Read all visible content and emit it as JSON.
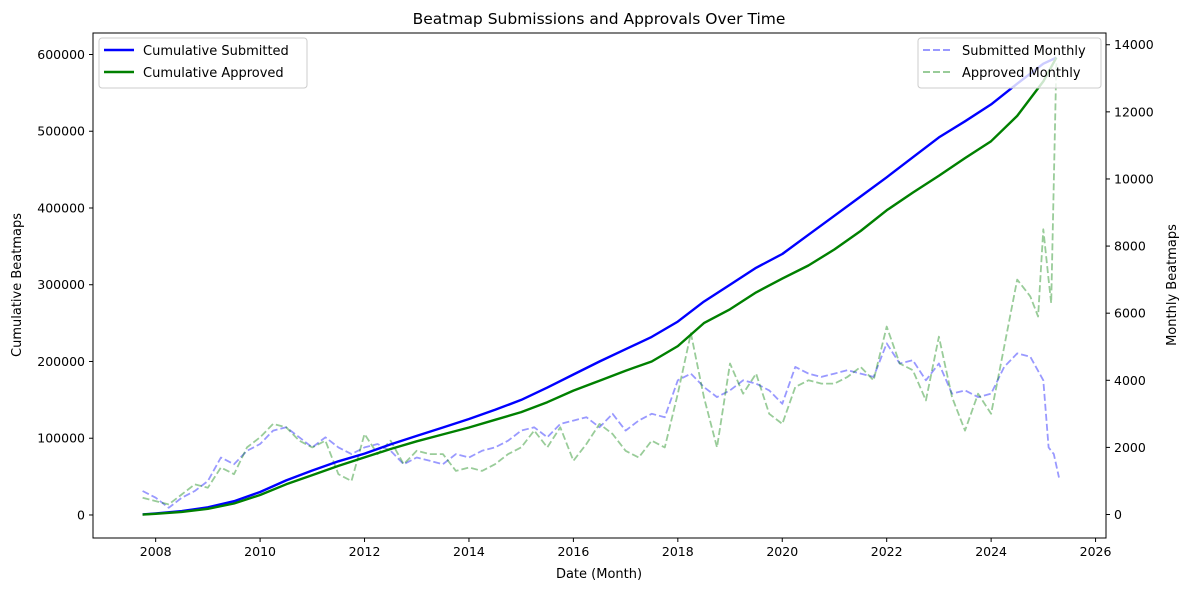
{
  "chart_data": {
    "type": "line",
    "title": "Beatmap Submissions and Approvals Over Time",
    "xlabel": "Date (Month)",
    "ylabel_left": "Cumulative Beatmaps",
    "ylabel_right": "Monthly Beatmaps",
    "x_range": [
      2006.8,
      2026.2
    ],
    "x_ticks": [
      2008,
      2010,
      2012,
      2014,
      2016,
      2018,
      2020,
      2022,
      2024,
      2026
    ],
    "y_left_range": [
      -30000,
      628000
    ],
    "y_left_ticks": [
      0,
      100000,
      200000,
      300000,
      400000,
      500000,
      600000
    ],
    "y_right_range": [
      -700,
      14350
    ],
    "y_right_ticks": [
      0,
      2000,
      4000,
      6000,
      8000,
      10000,
      12000,
      14000
    ],
    "grid": false,
    "legend_left": "upper-left",
    "legend_right": "upper-right",
    "series_cumulative": [
      {
        "name": "Cumulative Submitted",
        "axis": "left",
        "color": "#0000ff",
        "style": "solid",
        "points": [
          [
            2007.75,
            700
          ],
          [
            2008.0,
            2000
          ],
          [
            2008.5,
            5000
          ],
          [
            2009.0,
            10000
          ],
          [
            2009.5,
            18000
          ],
          [
            2010.0,
            30000
          ],
          [
            2010.5,
            45000
          ],
          [
            2011.0,
            58000
          ],
          [
            2011.5,
            70000
          ],
          [
            2012.0,
            80000
          ],
          [
            2012.5,
            92000
          ],
          [
            2013.0,
            103000
          ],
          [
            2013.5,
            114000
          ],
          [
            2014.0,
            125000
          ],
          [
            2014.5,
            137000
          ],
          [
            2015.0,
            150000
          ],
          [
            2015.5,
            166000
          ],
          [
            2016.0,
            183000
          ],
          [
            2016.5,
            200000
          ],
          [
            2017.0,
            216000
          ],
          [
            2017.5,
            232000
          ],
          [
            2018.0,
            252000
          ],
          [
            2018.5,
            278000
          ],
          [
            2019.0,
            300000
          ],
          [
            2019.5,
            322000
          ],
          [
            2020.0,
            340000
          ],
          [
            2020.5,
            365000
          ],
          [
            2021.0,
            390000
          ],
          [
            2021.5,
            415000
          ],
          [
            2022.0,
            440000
          ],
          [
            2022.5,
            466000
          ],
          [
            2023.0,
            492000
          ],
          [
            2023.5,
            513000
          ],
          [
            2024.0,
            535000
          ],
          [
            2024.5,
            562000
          ],
          [
            2025.0,
            588000
          ],
          [
            2025.25,
            596000
          ]
        ]
      },
      {
        "name": "Cumulative Approved",
        "axis": "left",
        "color": "#008000",
        "style": "solid",
        "points": [
          [
            2007.75,
            500
          ],
          [
            2008.0,
            1500
          ],
          [
            2008.5,
            4000
          ],
          [
            2009.0,
            8000
          ],
          [
            2009.5,
            15000
          ],
          [
            2010.0,
            26000
          ],
          [
            2010.5,
            40000
          ],
          [
            2011.0,
            52000
          ],
          [
            2011.5,
            64000
          ],
          [
            2012.0,
            75000
          ],
          [
            2012.5,
            86000
          ],
          [
            2013.0,
            96000
          ],
          [
            2013.5,
            105000
          ],
          [
            2014.0,
            114000
          ],
          [
            2014.5,
            124000
          ],
          [
            2015.0,
            134000
          ],
          [
            2015.5,
            147000
          ],
          [
            2016.0,
            162000
          ],
          [
            2016.5,
            175000
          ],
          [
            2017.0,
            188000
          ],
          [
            2017.5,
            200000
          ],
          [
            2018.0,
            220000
          ],
          [
            2018.5,
            250000
          ],
          [
            2019.0,
            268000
          ],
          [
            2019.5,
            290000
          ],
          [
            2020.0,
            308000
          ],
          [
            2020.5,
            325000
          ],
          [
            2021.0,
            346000
          ],
          [
            2021.5,
            370000
          ],
          [
            2022.0,
            397000
          ],
          [
            2022.5,
            420000
          ],
          [
            2023.0,
            442000
          ],
          [
            2023.5,
            465000
          ],
          [
            2024.0,
            487000
          ],
          [
            2024.5,
            520000
          ],
          [
            2025.0,
            565000
          ],
          [
            2025.25,
            596000
          ]
        ]
      }
    ],
    "series_monthly": [
      {
        "name": "Submitted Monthly",
        "axis": "right",
        "color": "#0000ff",
        "style": "dashed",
        "points": [
          [
            2007.75,
            700
          ],
          [
            2008.0,
            500
          ],
          [
            2008.25,
            200
          ],
          [
            2008.5,
            500
          ],
          [
            2008.75,
            700
          ],
          [
            2009.0,
            1000
          ],
          [
            2009.25,
            1700
          ],
          [
            2009.5,
            1500
          ],
          [
            2009.75,
            1900
          ],
          [
            2010.0,
            2100
          ],
          [
            2010.25,
            2500
          ],
          [
            2010.5,
            2600
          ],
          [
            2010.75,
            2300
          ],
          [
            2011.0,
            2000
          ],
          [
            2011.25,
            2300
          ],
          [
            2011.5,
            2000
          ],
          [
            2011.75,
            1800
          ],
          [
            2012.0,
            2000
          ],
          [
            2012.25,
            2100
          ],
          [
            2012.5,
            1900
          ],
          [
            2012.75,
            1500
          ],
          [
            2013.0,
            1700
          ],
          [
            2013.25,
            1600
          ],
          [
            2013.5,
            1500
          ],
          [
            2013.75,
            1800
          ],
          [
            2014.0,
            1700
          ],
          [
            2014.25,
            1900
          ],
          [
            2014.5,
            2000
          ],
          [
            2014.75,
            2200
          ],
          [
            2015.0,
            2500
          ],
          [
            2015.25,
            2600
          ],
          [
            2015.5,
            2300
          ],
          [
            2015.75,
            2700
          ],
          [
            2016.0,
            2800
          ],
          [
            2016.25,
            2900
          ],
          [
            2016.5,
            2600
          ],
          [
            2016.75,
            3000
          ],
          [
            2017.0,
            2500
          ],
          [
            2017.25,
            2800
          ],
          [
            2017.5,
            3000
          ],
          [
            2017.75,
            2900
          ],
          [
            2018.0,
            4000
          ],
          [
            2018.25,
            4200
          ],
          [
            2018.5,
            3800
          ],
          [
            2018.75,
            3500
          ],
          [
            2019.0,
            3700
          ],
          [
            2019.25,
            4000
          ],
          [
            2019.5,
            3900
          ],
          [
            2019.75,
            3700
          ],
          [
            2020.0,
            3300
          ],
          [
            2020.25,
            4400
          ],
          [
            2020.5,
            4200
          ],
          [
            2020.75,
            4100
          ],
          [
            2021.0,
            4200
          ],
          [
            2021.25,
            4300
          ],
          [
            2021.5,
            4200
          ],
          [
            2021.75,
            4100
          ],
          [
            2022.0,
            5100
          ],
          [
            2022.25,
            4500
          ],
          [
            2022.5,
            4600
          ],
          [
            2022.75,
            4000
          ],
          [
            2023.0,
            4500
          ],
          [
            2023.25,
            3600
          ],
          [
            2023.5,
            3700
          ],
          [
            2023.75,
            3500
          ],
          [
            2024.0,
            3600
          ],
          [
            2024.25,
            4400
          ],
          [
            2024.5,
            4800
          ],
          [
            2024.75,
            4700
          ],
          [
            2025.0,
            4000
          ],
          [
            2025.1,
            2000
          ],
          [
            2025.2,
            1800
          ],
          [
            2025.3,
            1100
          ]
        ]
      },
      {
        "name": "Approved Monthly",
        "axis": "right",
        "color": "#008000",
        "style": "dashed",
        "points": [
          [
            2007.75,
            500
          ],
          [
            2008.0,
            400
          ],
          [
            2008.25,
            300
          ],
          [
            2008.5,
            600
          ],
          [
            2008.75,
            900
          ],
          [
            2009.0,
            800
          ],
          [
            2009.25,
            1400
          ],
          [
            2009.5,
            1200
          ],
          [
            2009.75,
            2000
          ],
          [
            2010.0,
            2300
          ],
          [
            2010.25,
            2700
          ],
          [
            2010.5,
            2600
          ],
          [
            2010.75,
            2200
          ],
          [
            2011.0,
            2000
          ],
          [
            2011.25,
            2200
          ],
          [
            2011.5,
            1200
          ],
          [
            2011.75,
            1000
          ],
          [
            2012.0,
            2400
          ],
          [
            2012.25,
            1800
          ],
          [
            2012.5,
            2200
          ],
          [
            2012.75,
            1500
          ],
          [
            2013.0,
            1900
          ],
          [
            2013.25,
            1800
          ],
          [
            2013.5,
            1800
          ],
          [
            2013.75,
            1300
          ],
          [
            2014.0,
            1400
          ],
          [
            2014.25,
            1300
          ],
          [
            2014.5,
            1500
          ],
          [
            2014.75,
            1800
          ],
          [
            2015.0,
            2000
          ],
          [
            2015.25,
            2500
          ],
          [
            2015.5,
            2000
          ],
          [
            2015.75,
            2600
          ],
          [
            2016.0,
            1600
          ],
          [
            2016.25,
            2100
          ],
          [
            2016.5,
            2700
          ],
          [
            2016.75,
            2400
          ],
          [
            2017.0,
            1900
          ],
          [
            2017.25,
            1700
          ],
          [
            2017.5,
            2200
          ],
          [
            2017.75,
            2000
          ],
          [
            2018.0,
            3600
          ],
          [
            2018.25,
            5400
          ],
          [
            2018.5,
            3500
          ],
          [
            2018.75,
            2000
          ],
          [
            2019.0,
            4500
          ],
          [
            2019.25,
            3600
          ],
          [
            2019.5,
            4200
          ],
          [
            2019.75,
            3000
          ],
          [
            2020.0,
            2700
          ],
          [
            2020.25,
            3800
          ],
          [
            2020.5,
            4000
          ],
          [
            2020.75,
            3900
          ],
          [
            2021.0,
            3900
          ],
          [
            2021.25,
            4100
          ],
          [
            2021.5,
            4400
          ],
          [
            2021.75,
            4000
          ],
          [
            2022.0,
            5600
          ],
          [
            2022.25,
            4500
          ],
          [
            2022.5,
            4300
          ],
          [
            2022.75,
            3400
          ],
          [
            2023.0,
            5300
          ],
          [
            2023.25,
            3500
          ],
          [
            2023.5,
            2500
          ],
          [
            2023.75,
            3600
          ],
          [
            2024.0,
            3000
          ],
          [
            2024.25,
            5000
          ],
          [
            2024.5,
            7000
          ],
          [
            2024.75,
            6500
          ],
          [
            2024.9,
            5900
          ],
          [
            2025.0,
            8500
          ],
          [
            2025.1,
            7000
          ],
          [
            2025.15,
            6300
          ],
          [
            2025.25,
            13500
          ]
        ]
      }
    ]
  }
}
